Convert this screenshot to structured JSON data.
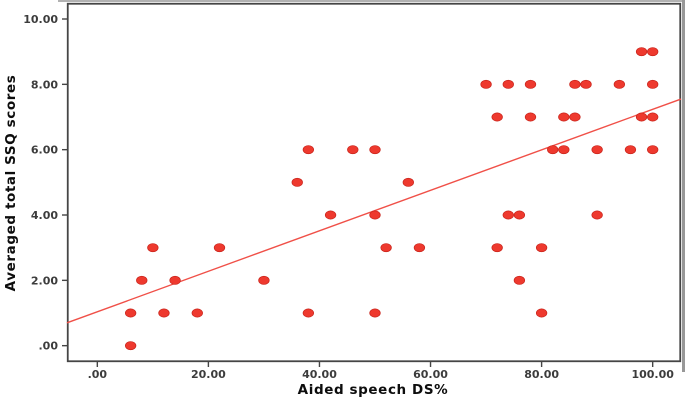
{
  "figure": {
    "background": "#ffffff",
    "border_color": "#454545",
    "tick_color": "#454545",
    "frame_edge_color": "#a8a8a8"
  },
  "chart_data": {
    "type": "scatter",
    "title": "",
    "xlabel": "Aided speech DS%",
    "ylabel": "Averaged total SSQ scores",
    "xlim": [
      -5.46,
      105.1
    ],
    "ylim": [
      -0.5,
      10.49
    ],
    "grid": false,
    "legend": null,
    "x_ticks": {
      "values": [
        0,
        20,
        40,
        60,
        80,
        100
      ],
      "labels": [
        ".00",
        "20.00",
        "40.00",
        "60.00",
        "80.00",
        "100.00"
      ]
    },
    "y_ticks": {
      "values": [
        0,
        2,
        4,
        6,
        8,
        10
      ],
      "labels": [
        ".00",
        "2.00",
        "4.00",
        "6.00",
        "8.00",
        "10.00"
      ]
    },
    "points": [
      [
        6,
        0
      ],
      [
        6,
        1
      ],
      [
        12,
        1
      ],
      [
        18,
        1
      ],
      [
        38,
        1
      ],
      [
        50,
        1
      ],
      [
        80,
        1
      ],
      [
        8,
        2
      ],
      [
        14,
        2
      ],
      [
        30,
        2
      ],
      [
        76,
        2
      ],
      [
        10,
        3
      ],
      [
        22,
        3
      ],
      [
        52,
        3
      ],
      [
        58,
        3
      ],
      [
        72,
        3
      ],
      [
        80,
        3
      ],
      [
        42,
        4
      ],
      [
        50,
        4
      ],
      [
        74,
        4
      ],
      [
        76,
        4
      ],
      [
        90,
        4
      ],
      [
        36,
        5
      ],
      [
        56,
        5
      ],
      [
        38,
        6
      ],
      [
        46,
        6
      ],
      [
        50,
        6
      ],
      [
        82,
        6
      ],
      [
        84,
        6
      ],
      [
        90,
        6
      ],
      [
        96,
        6
      ],
      [
        100,
        6
      ],
      [
        72,
        7
      ],
      [
        78,
        7
      ],
      [
        84,
        7
      ],
      [
        86,
        7
      ],
      [
        98,
        7
      ],
      [
        100,
        7
      ],
      [
        70,
        8
      ],
      [
        74,
        8
      ],
      [
        78,
        8
      ],
      [
        86,
        8
      ],
      [
        88,
        8
      ],
      [
        94,
        8
      ],
      [
        100,
        8
      ],
      [
        98,
        9
      ],
      [
        100,
        9
      ]
    ],
    "fit_line": {
      "x1": -5.46,
      "y1": 0.7,
      "x2": 105.1,
      "y2": 7.55
    },
    "point_color": "#ee392e",
    "point_edge_color": "#c9241b",
    "line_color": "#f05048"
  }
}
